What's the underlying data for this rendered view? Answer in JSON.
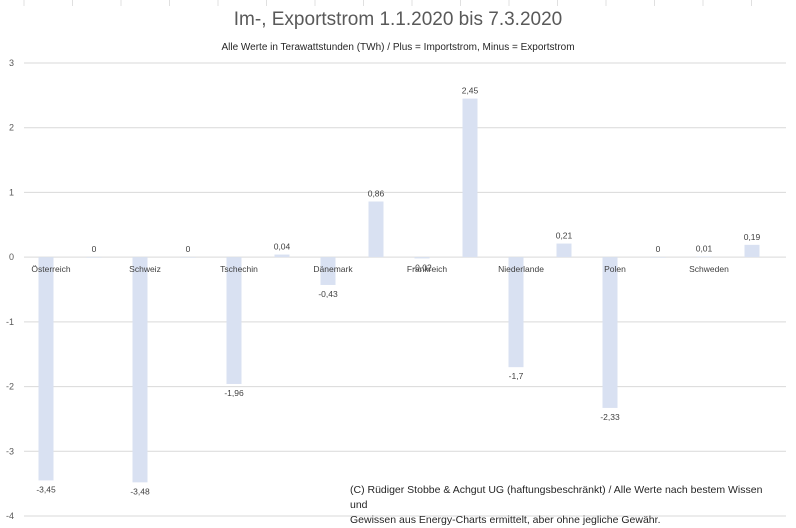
{
  "chart_data": {
    "type": "bar",
    "title": "Im-, Exportstrom 1.1.2020 bis 7.3.2020",
    "subtitle": "Alle Werte in Terawattstunden (TWh) / Plus = Importstrom, Minus = Exportstrom",
    "categories": [
      "Österreich",
      "Schweiz",
      "Tschechin",
      "Dänemark",
      "Frankreich",
      "Niederlande",
      "Polen",
      "Schweden"
    ],
    "series": [
      {
        "values": [
          -3.45,
          -3.48,
          -1.96,
          -0.43,
          -0.02,
          -1.7,
          -2.33,
          0.01
        ]
      },
      {
        "values": [
          0,
          0,
          0.04,
          0.86,
          2.45,
          0.21,
          0,
          0.19
        ]
      }
    ],
    "data_labels": [
      [
        "-3,45",
        "-3,48",
        "-1,96",
        "-0,43",
        "-0,02",
        "-1,7",
        "-2,33",
        "0,01"
      ],
      [
        "0",
        "0",
        "0,04",
        "0,86",
        "2,45",
        "0,21",
        "0",
        "0,19"
      ]
    ],
    "ylim": [
      -4,
      3
    ],
    "yticks": [
      3,
      2,
      1,
      0,
      -1,
      -2,
      -3,
      -4
    ],
    "ytick_labels": [
      "3",
      "2",
      "1",
      "0",
      "-1",
      "-2",
      "-3",
      "-4"
    ],
    "xlabel": "",
    "ylabel": "",
    "grid": true,
    "legend": "none",
    "bar_color": "#d9e1f2"
  },
  "footnote_line1": "(C) Rüdiger Stobbe & Achgut UG (haftungsbeschränkt) / Alle Werte nach bestem Wissen und",
  "footnote_line2": "Gewissen aus Energy-Charts ermittelt, aber ohne jegliche Gewähr."
}
